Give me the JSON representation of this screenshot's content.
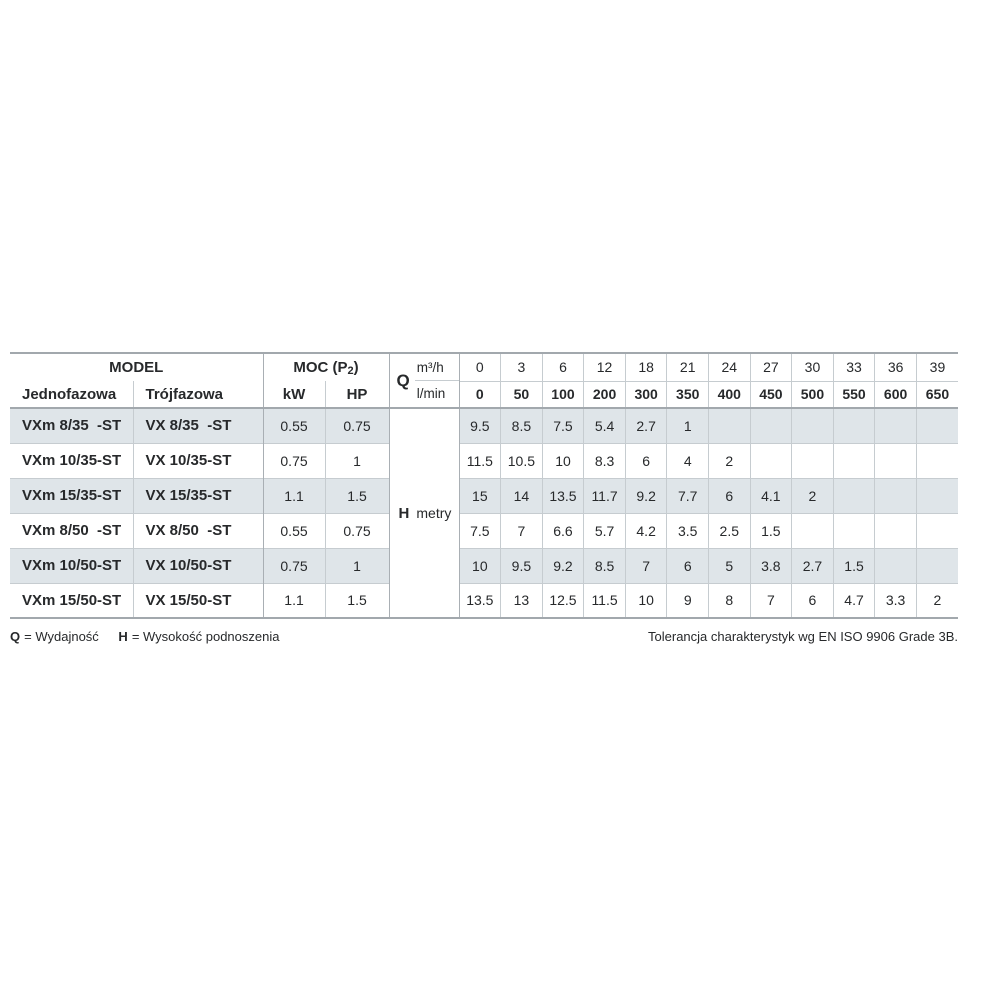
{
  "table": {
    "header": {
      "model": "MODEL",
      "jednofazowa": "Jednofazowa",
      "trojfazowa": "Trójfazowa",
      "moc_prefix": "MOC (P",
      "moc_sub": "2",
      "moc_suffix": ")",
      "kw": "kW",
      "hp": "HP",
      "q_label": "Q",
      "q_unit_top": "m³/h",
      "q_unit_bottom": "l/min",
      "flow_m3h": [
        "0",
        "3",
        "6",
        "12",
        "18",
        "21",
        "24",
        "27",
        "30",
        "33",
        "36",
        "39"
      ],
      "flow_lmin": [
        "0",
        "50",
        "100",
        "200",
        "300",
        "350",
        "400",
        "450",
        "500",
        "550",
        "600",
        "650"
      ],
      "h_label": "H",
      "h_unit": "metry"
    },
    "rows": [
      {
        "single": "VXm 8/35  -ST",
        "three": "VX 8/35  -ST",
        "kw": "0.55",
        "hp": "0.75",
        "h": [
          "9.5",
          "8.5",
          "7.5",
          "5.4",
          "2.7",
          "1",
          "",
          "",
          "",
          "",
          "",
          ""
        ]
      },
      {
        "single": "VXm 10/35-ST",
        "three": "VX 10/35-ST",
        "kw": "0.75",
        "hp": "1",
        "h": [
          "11.5",
          "10.5",
          "10",
          "8.3",
          "6",
          "4",
          "2",
          "",
          "",
          "",
          "",
          ""
        ]
      },
      {
        "single": "VXm 15/35-ST",
        "three": "VX 15/35-ST",
        "kw": "1.1",
        "hp": "1.5",
        "h": [
          "15",
          "14",
          "13.5",
          "11.7",
          "9.2",
          "7.7",
          "6",
          "4.1",
          "2",
          "",
          "",
          ""
        ]
      },
      {
        "single": "VXm 8/50  -ST",
        "three": "VX 8/50  -ST",
        "kw": "0.55",
        "hp": "0.75",
        "h": [
          "7.5",
          "7",
          "6.6",
          "5.7",
          "4.2",
          "3.5",
          "2.5",
          "1.5",
          "",
          "",
          "",
          ""
        ]
      },
      {
        "single": "VXm 10/50-ST",
        "three": "VX 10/50-ST",
        "kw": "0.75",
        "hp": "1",
        "h": [
          "10",
          "9.5",
          "9.2",
          "8.5",
          "7",
          "6",
          "5",
          "3.8",
          "2.7",
          "1.5",
          "",
          ""
        ]
      },
      {
        "single": "VXm 15/50-ST",
        "three": "VX 15/50-ST",
        "kw": "1.1",
        "hp": "1.5",
        "h": [
          "13.5",
          "13",
          "12.5",
          "11.5",
          "10",
          "9",
          "8",
          "7",
          "6",
          "4.7",
          "3.3",
          "2"
        ]
      }
    ]
  },
  "footer": {
    "legend": [
      {
        "symbol": "Q",
        "text": "= Wydajność"
      },
      {
        "symbol": "H",
        "text": "= Wysokość podnoszenia"
      }
    ],
    "tolerance": "Tolerancja charakterystyk wg EN ISO 9906 Grade 3B."
  },
  "colors": {
    "stripe": "#dfe5e9",
    "grid_thin": "#c6ccd0",
    "grid_heavy": "#a2a8ad",
    "text": "#27292b"
  }
}
